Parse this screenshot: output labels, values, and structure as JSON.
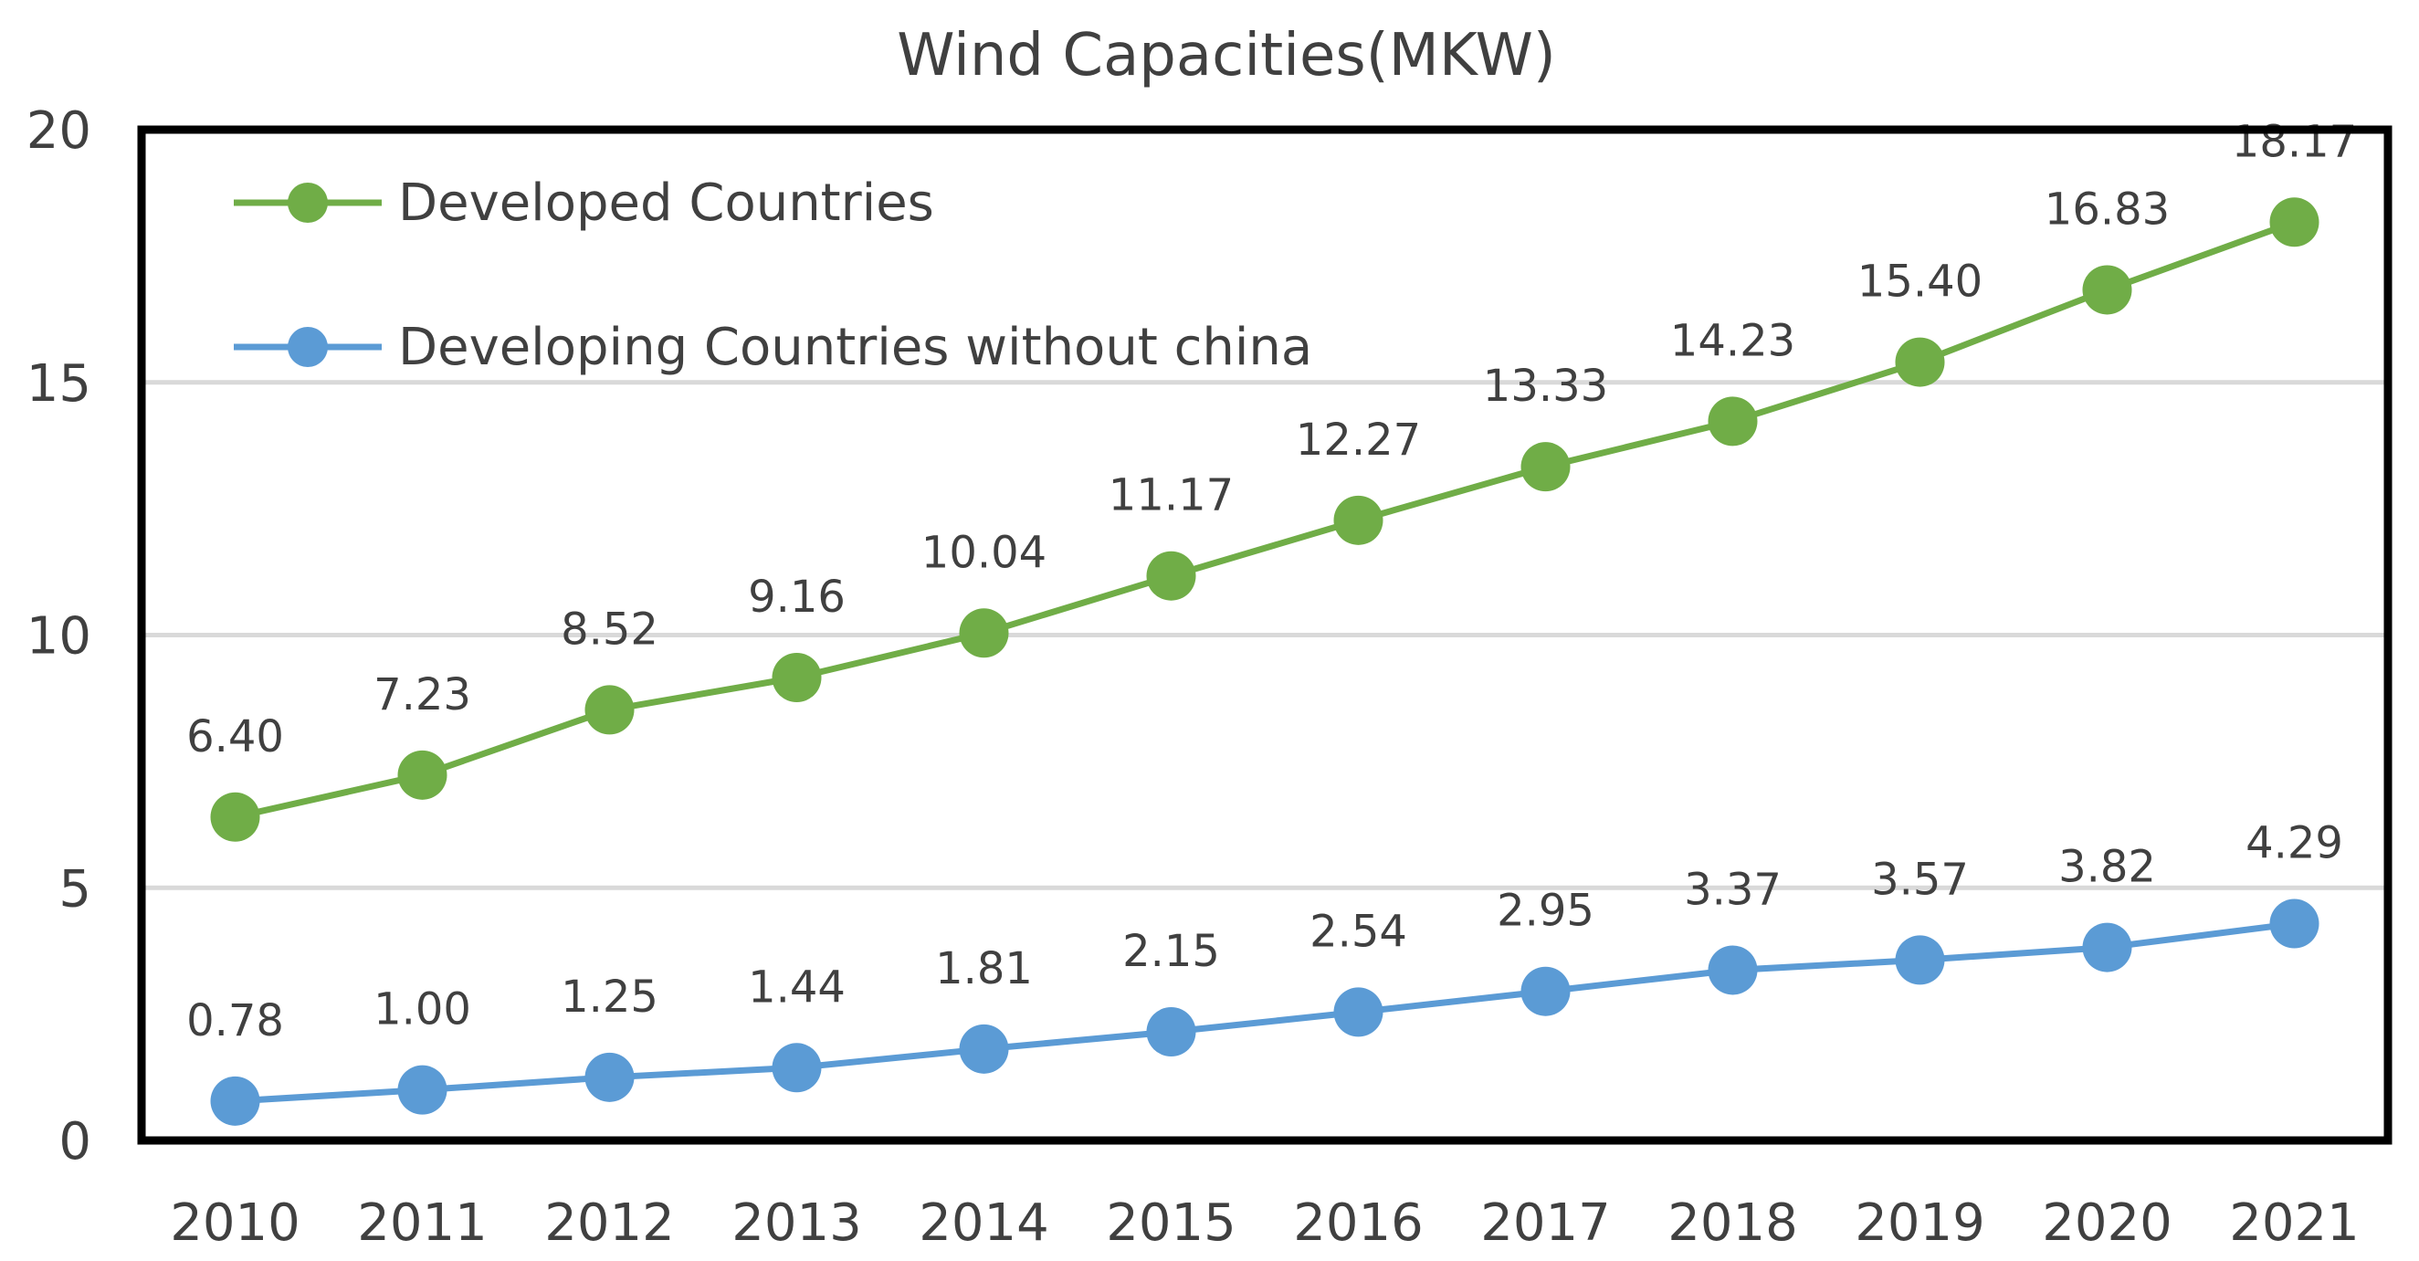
{
  "chart_data": {
    "type": "line",
    "title": "Wind Capacities(MKW)",
    "xlabel": "",
    "ylabel": "",
    "categories": [
      "2010",
      "2011",
      "2012",
      "2013",
      "2014",
      "2015",
      "2016",
      "2017",
      "2018",
      "2019",
      "2020",
      "2021"
    ],
    "ylim": [
      0,
      20
    ],
    "yticks": [
      "0",
      "5",
      "10",
      "15",
      "20"
    ],
    "grid": true,
    "legend_position": "top-left",
    "series": [
      {
        "name": "Developed Countries",
        "color": "#70AD47",
        "values": [
          6.4,
          7.23,
          8.52,
          9.16,
          10.04,
          11.17,
          12.27,
          13.33,
          14.23,
          15.4,
          16.83,
          18.17
        ],
        "labels": [
          "6.40",
          "7.23",
          "8.52",
          "9.16",
          "10.04",
          "11.17",
          "12.27",
          "13.33",
          "14.23",
          "15.40",
          "16.83",
          "18.17"
        ]
      },
      {
        "name": "Developing Countries without china",
        "color": "#5B9BD5",
        "values": [
          0.78,
          1.0,
          1.25,
          1.44,
          1.81,
          2.15,
          2.54,
          2.95,
          3.37,
          3.57,
          3.82,
          4.29
        ],
        "labels": [
          "0.78",
          "1.00",
          "1.25",
          "1.44",
          "1.81",
          "2.15",
          "2.54",
          "2.95",
          "3.37",
          "3.57",
          "3.82",
          "4.29"
        ]
      }
    ],
    "gridline_color": "#D9D9D9",
    "frame_color": "#000000"
  }
}
